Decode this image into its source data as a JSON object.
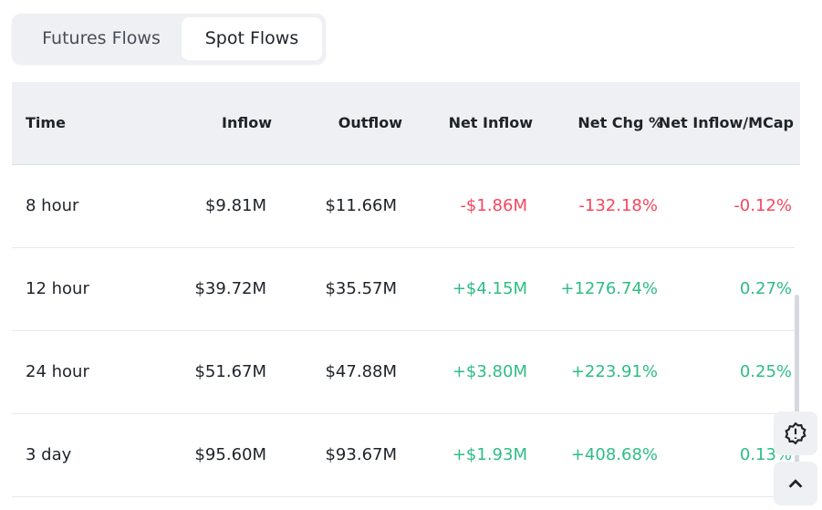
{
  "tabs": [
    "Futures Flows",
    "Spot Flows"
  ],
  "columns": [
    "Time",
    "Inflow",
    "Outflow",
    "Net Inflow",
    "Net Chg %",
    "Net Inflow/MCap"
  ],
  "rows": [
    {
      "time": "8 hour",
      "inflow": "$9.81M",
      "outflow": "$11.66M",
      "net": "-$1.86M",
      "chg": "-132.18%",
      "mcap": "-0.12%",
      "dir": "neg"
    },
    {
      "time": "12 hour",
      "inflow": "$39.72M",
      "outflow": "$35.57M",
      "net": "+$4.15M",
      "chg": "+1276.74%",
      "mcap": "0.27%",
      "dir": "pos"
    },
    {
      "time": "24 hour",
      "inflow": "$51.67M",
      "outflow": "$47.88M",
      "net": "+$3.80M",
      "chg": "+223.91%",
      "mcap": "0.25%",
      "dir": "pos"
    },
    {
      "time": "3 day",
      "inflow": "$95.60M",
      "outflow": "$93.67M",
      "net": "+$1.93M",
      "chg": "+408.68%",
      "mcap": "0.13%",
      "dir": "pos"
    }
  ],
  "colors": {
    "positive": "#2ebd85",
    "negative": "#f6465d"
  }
}
